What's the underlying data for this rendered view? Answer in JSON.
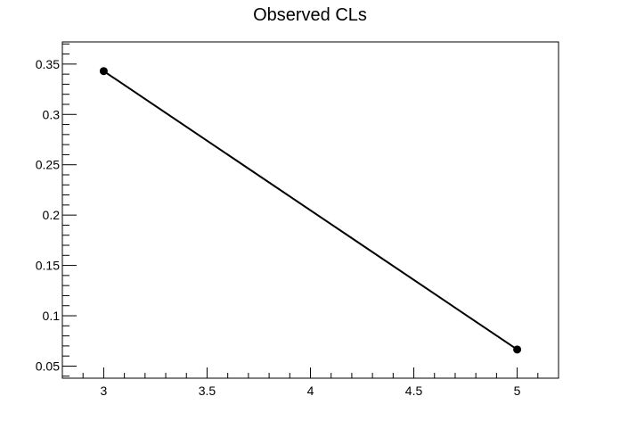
{
  "chart_data": {
    "type": "line",
    "title": "Observed CLs",
    "xlabel": "",
    "ylabel": "",
    "x": [
      3,
      5
    ],
    "series": [
      {
        "values": [
          0.343,
          0.0665
        ],
        "color": "#000000",
        "marker": "filled-circle"
      }
    ],
    "xlim": [
      2.8,
      5.2
    ],
    "ylim": [
      0.038,
      0.372
    ],
    "xticks": [
      3,
      3.5,
      4,
      4.5,
      5
    ],
    "xtick_labels": [
      "3",
      "3.5",
      "4",
      "4.5",
      "5"
    ],
    "yticks": [
      0.05,
      0.1,
      0.15,
      0.2,
      0.25,
      0.3,
      0.35
    ],
    "ytick_labels": [
      "0.05",
      "0.1",
      "0.15",
      "0.2",
      "0.25",
      "0.3",
      "0.35"
    ],
    "grid": false,
    "legend": "none"
  }
}
